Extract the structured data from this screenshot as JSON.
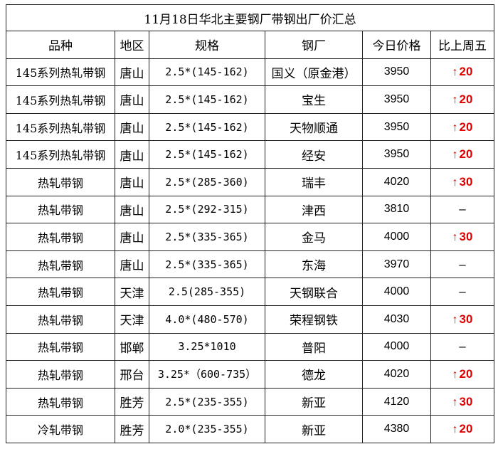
{
  "title": "11月18日华北主要钢厂带钢出厂价汇总",
  "headers": [
    "品种",
    "地区",
    "规格",
    "钢厂",
    "今日价格",
    "比上周五"
  ],
  "rows": [
    {
      "product": "145系列热轧带钢",
      "region": "唐山",
      "spec": "2.5*(145-162)",
      "mill": "国义（原金港）",
      "price": "3950",
      "change": "20",
      "dir": "up"
    },
    {
      "product": "145系列热轧带钢",
      "region": "唐山",
      "spec": "2.5*(145-162)",
      "mill": "宝生",
      "price": "3950",
      "change": "20",
      "dir": "up"
    },
    {
      "product": "145系列热轧带钢",
      "region": "唐山",
      "spec": "2.5*(145-162)",
      "mill": "天物顺通",
      "price": "3950",
      "change": "20",
      "dir": "up"
    },
    {
      "product": "145系列热轧带钢",
      "region": "唐山",
      "spec": "2.5*(145-162)",
      "mill": "经安",
      "price": "3950",
      "change": "20",
      "dir": "up"
    },
    {
      "product": "热轧带钢",
      "region": "唐山",
      "spec": "2.5*(285-360)",
      "mill": "瑞丰",
      "price": "4020",
      "change": "30",
      "dir": "up"
    },
    {
      "product": "热轧带钢",
      "region": "唐山",
      "spec": "2.5*(292-315)",
      "mill": "津西",
      "price": "3810",
      "change": "–",
      "dir": "flat"
    },
    {
      "product": "热轧带钢",
      "region": "唐山",
      "spec": "2.5*(335-365)",
      "mill": "金马",
      "price": "4000",
      "change": "30",
      "dir": "up"
    },
    {
      "product": "热轧带钢",
      "region": "唐山",
      "spec": "2.5*(335-365)",
      "mill": "东海",
      "price": "3970",
      "change": "–",
      "dir": "flat"
    },
    {
      "product": "热轧带钢",
      "region": "天津",
      "spec": "2.5(285-355)",
      "mill": "天钢联合",
      "price": "4000",
      "change": "–",
      "dir": "flat"
    },
    {
      "product": "热轧带钢",
      "region": "天津",
      "spec": "4.0*(480-570)",
      "mill": "荣程钢铁",
      "price": "4030",
      "change": "30",
      "dir": "up"
    },
    {
      "product": "热轧带钢",
      "region": "邯郸",
      "spec": "3.25*1010",
      "mill": "普阳",
      "price": "4000",
      "change": "–",
      "dir": "flat"
    },
    {
      "product": "热轧带钢",
      "region": "邢台",
      "spec": "3.25*（600-735）",
      "mill": "德龙",
      "price": "4020",
      "change": "20",
      "dir": "up"
    },
    {
      "product": "热轧带钢",
      "region": "胜芳",
      "spec": "2.5*(235-355)",
      "mill": "新亚",
      "price": "4120",
      "change": "30",
      "dir": "up"
    },
    {
      "product": "冷轧带钢",
      "region": "胜芳",
      "spec": "2.0*(235-355)",
      "mill": "新亚",
      "price": "4380",
      "change": "20",
      "dir": "up"
    }
  ],
  "icons": {
    "up": "arrow-up-icon"
  },
  "colors": {
    "up": "#e00000"
  }
}
